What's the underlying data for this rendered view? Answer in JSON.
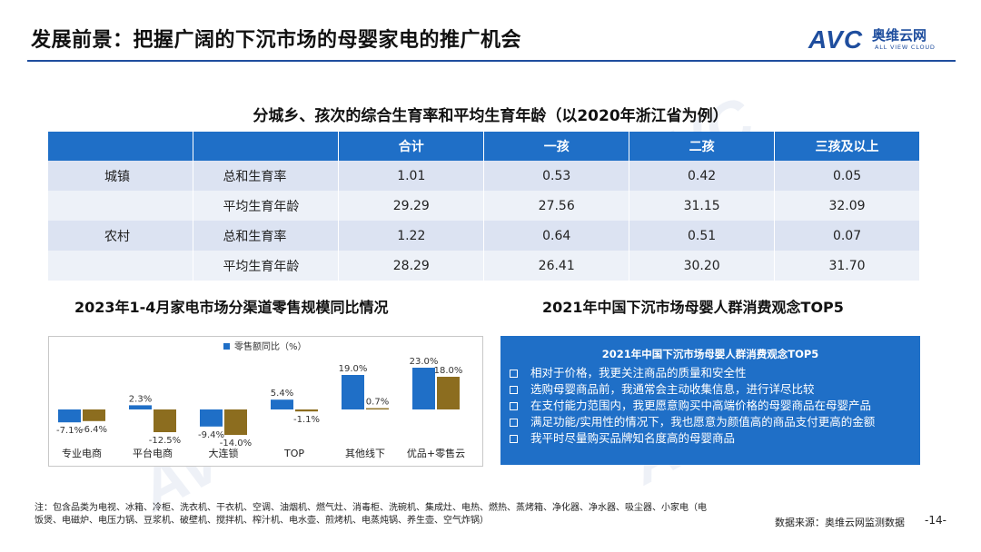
{
  "header": {
    "title": "发展前景：把握广阔的下沉市场的母婴家电的推广机会",
    "logo_text": "AVC",
    "logo_cn": "奥维云网",
    "logo_en": "ALL VIEW CLOUD"
  },
  "watermark": {
    "mark": "AVC",
    "cn": "奥维云网",
    "en": "ALL VIEW CLOUD"
  },
  "colors": {
    "brand_blue": "#1f4e9e",
    "table_header": "#1f6fc7",
    "bar_blue": "#1f6fc7",
    "bar_olive": "#8c6d1f"
  },
  "fertility_table": {
    "title": "分城乡、孩次的综合生育率和平均生育年龄（以2020年浙江省为例）",
    "columns": [
      "",
      "",
      "合计",
      "一孩",
      "二孩",
      "三孩及以上"
    ],
    "rows": [
      {
        "area": "城镇",
        "metric": "总和生育率",
        "values": [
          "1.01",
          "0.53",
          "0.42",
          "0.05"
        ]
      },
      {
        "area": "",
        "metric": "平均生育年龄",
        "values": [
          "29.29",
          "27.56",
          "31.15",
          "32.09"
        ]
      },
      {
        "area": "农村",
        "metric": "总和生育率",
        "values": [
          "1.22",
          "0.64",
          "0.51",
          "0.07"
        ]
      },
      {
        "area": "",
        "metric": "平均生育年龄",
        "values": [
          "28.29",
          "26.41",
          "30.20",
          "31.70"
        ]
      }
    ]
  },
  "left_title": "2023年1-4月家电市场分渠道零售规模同比情况",
  "right_title": "2021年中国下沉市场母婴人群消费观念TOP5",
  "chart_data": {
    "type": "bar",
    "legend": "零售额同比（%）",
    "categories": [
      "专业电商",
      "平台电商",
      "大连锁",
      "TOP",
      "其他线下",
      "优品+零售云"
    ],
    "series": [
      {
        "name": "零售额同比（%）",
        "values": [
          -7.1,
          2.3,
          -9.4,
          5.4,
          19.0,
          23.0
        ],
        "labels": [
          "-7.1%",
          "2.3%",
          "-9.4%",
          "5.4%",
          "19.0%",
          "23.0%"
        ]
      },
      {
        "name": "",
        "values": [
          -6.4,
          -12.5,
          -14.0,
          -1.1,
          0.7,
          18.0
        ],
        "labels": [
          "-6.4%",
          "-12.5%",
          "-14.0%",
          "-1.1%",
          "0.7%",
          "18.0%"
        ]
      }
    ],
    "ylim": [
      -16,
      25
    ],
    "legend_position": "top",
    "grid": false
  },
  "consumer_panel": {
    "heading": "2021年中国下沉市场母婴人群消费观念TOP5",
    "items": [
      "相对于价格，我更关注商品的质量和安全性",
      "选购母婴商品前，我通常会主动收集信息，进行详尽比较",
      "在支付能力范围内，我更愿意购买中高端价格的母婴商品在母婴产品",
      "满足功能/实用性的情况下，我也愿意为颜值高的商品支付更高的金额",
      "我平时尽量购买品牌知名度高的母婴商品"
    ]
  },
  "footnote": "注：包含品类为电视、冰箱、冷柜、洗衣机、干衣机、空调、油烟机、燃气灶、消毒柜、洗碗机、集成灶、电热、燃热、蒸烤箱、净化器、净水器、吸尘器、小家电（电饭煲、电磁炉、电压力锅、豆浆机、破壁机、搅拌机、榨汁机、电水壶、煎烤机、电蒸炖锅、养生壶、空气炸锅）",
  "source": "数据来源：奥维云网监测数据",
  "page": "-14-"
}
